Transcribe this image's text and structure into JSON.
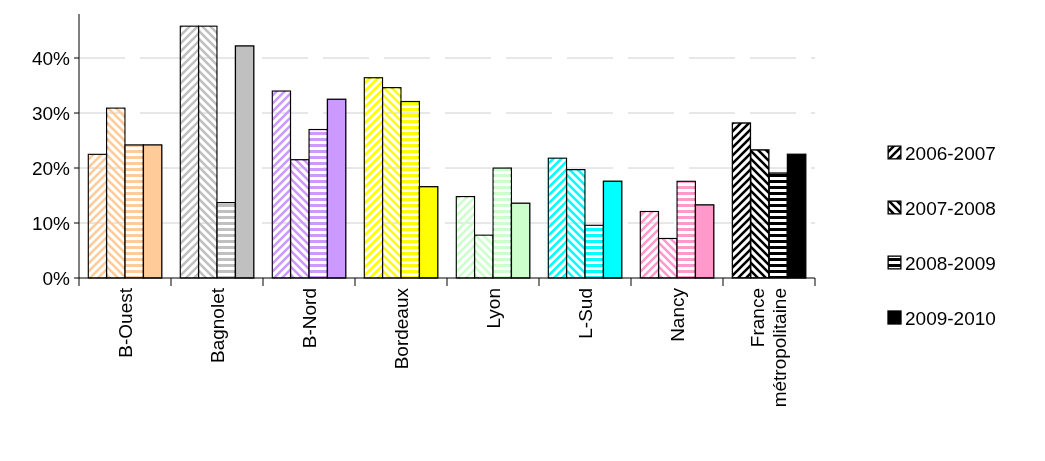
{
  "chart_data": {
    "type": "bar",
    "categories": [
      "B-Ouest",
      "Bagnolet",
      "B-Nord",
      "Bordeaux",
      "Lyon",
      "L-Sud",
      "Nancy",
      "France métropolitaine"
    ],
    "series": [
      {
        "name": "2006-2007",
        "color": "#000000",
        "colors": [
          "#ffcc99",
          "#c0c0c0",
          "#cc99ff",
          "#ffff00",
          "#ccffcc",
          "#00ffff",
          "#ff99cc",
          "#000000"
        ],
        "values": [
          22.5,
          45.8,
          34.0,
          36.4,
          14.8,
          21.8,
          12.1,
          28.2
        ]
      },
      {
        "name": "2007-2008",
        "color": "#000000",
        "colors": [
          "#ffcc99",
          "#c0c0c0",
          "#cc99ff",
          "#ffff00",
          "#ccffcc",
          "#00ffff",
          "#ff99cc",
          "#000000"
        ],
        "values": [
          30.9,
          45.8,
          21.5,
          34.6,
          7.8,
          19.7,
          7.2,
          23.3
        ]
      },
      {
        "name": "2008-2009",
        "color": "#000000",
        "colors": [
          "#ffcc99",
          "#c0c0c0",
          "#cc99ff",
          "#ffff00",
          "#ccffcc",
          "#00ffff",
          "#ff99cc",
          "#000000"
        ],
        "values": [
          24.2,
          13.7,
          27.0,
          32.1,
          20.0,
          9.6,
          17.6,
          19.1
        ]
      },
      {
        "name": "2009-2010",
        "color": "#000000",
        "colors": [
          "#ffcc99",
          "#c0c0c0",
          "#cc99ff",
          "#ffff00",
          "#ccffcc",
          "#00ffff",
          "#ff99cc",
          "#000000"
        ],
        "values": [
          24.2,
          42.2,
          32.5,
          16.6,
          13.6,
          17.6,
          13.3,
          22.5
        ]
      }
    ],
    "ylim": [
      0,
      48
    ],
    "yticks": [
      {
        "value": 0,
        "label": "0%"
      },
      {
        "value": 10,
        "label": "10%"
      },
      {
        "value": 20,
        "label": "20%"
      },
      {
        "value": 30,
        "label": "30%"
      },
      {
        "value": 40,
        "label": "40%"
      }
    ],
    "grid": "y",
    "legend": "right"
  }
}
